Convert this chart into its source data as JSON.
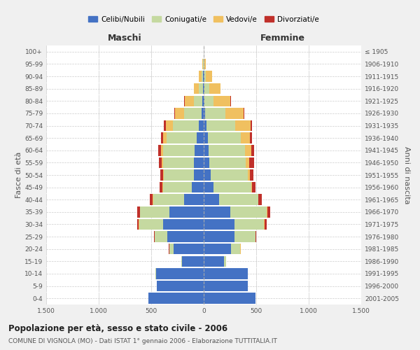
{
  "age_groups": [
    "0-4",
    "5-9",
    "10-14",
    "15-19",
    "20-24",
    "25-29",
    "30-34",
    "35-39",
    "40-44",
    "45-49",
    "50-54",
    "55-59",
    "60-64",
    "65-69",
    "70-74",
    "75-79",
    "80-84",
    "85-89",
    "90-94",
    "95-99",
    "100+"
  ],
  "birth_years": [
    "2001-2005",
    "1996-2000",
    "1991-1995",
    "1986-1990",
    "1981-1985",
    "1976-1980",
    "1971-1975",
    "1966-1970",
    "1961-1965",
    "1956-1960",
    "1951-1955",
    "1946-1950",
    "1941-1945",
    "1936-1940",
    "1931-1935",
    "1926-1930",
    "1921-1925",
    "1916-1920",
    "1911-1915",
    "1906-1910",
    "≤ 1905"
  ],
  "males": {
    "celibi": [
      530,
      445,
      455,
      205,
      290,
      345,
      390,
      330,
      185,
      115,
      95,
      95,
      90,
      70,
      50,
      20,
      12,
      8,
      4,
      2,
      0
    ],
    "coniugati": [
      0,
      0,
      2,
      8,
      35,
      120,
      225,
      275,
      295,
      275,
      285,
      290,
      300,
      285,
      245,
      170,
      80,
      40,
      18,
      4,
      0
    ],
    "vedovi": [
      0,
      0,
      0,
      0,
      4,
      4,
      2,
      2,
      4,
      5,
      8,
      12,
      18,
      32,
      68,
      85,
      88,
      45,
      28,
      5,
      2
    ],
    "divorziati": [
      0,
      0,
      0,
      0,
      4,
      4,
      18,
      28,
      28,
      22,
      28,
      32,
      28,
      18,
      14,
      4,
      4,
      2,
      0,
      0,
      0
    ]
  },
  "females": {
    "nubili": [
      490,
      420,
      420,
      195,
      260,
      295,
      290,
      255,
      148,
      92,
      68,
      55,
      48,
      40,
      25,
      15,
      8,
      8,
      4,
      2,
      0
    ],
    "coniugate": [
      0,
      0,
      2,
      18,
      88,
      195,
      285,
      345,
      370,
      358,
      355,
      345,
      348,
      310,
      275,
      190,
      82,
      48,
      18,
      4,
      0
    ],
    "vedove": [
      0,
      0,
      0,
      0,
      4,
      4,
      4,
      4,
      4,
      8,
      18,
      35,
      55,
      90,
      148,
      175,
      165,
      105,
      55,
      12,
      2
    ],
    "divorziate": [
      0,
      0,
      0,
      0,
      4,
      4,
      18,
      32,
      32,
      32,
      35,
      45,
      28,
      18,
      14,
      4,
      4,
      2,
      0,
      0,
      0
    ]
  },
  "colors": {
    "celibi_nubili": "#4472c4",
    "coniugati_e": "#c5d9a0",
    "vedovi_e": "#f0c060",
    "divorziati_e": "#c0302a"
  },
  "title": "Popolazione per età, sesso e stato civile - 2006",
  "subtitle": "COMUNE DI VIGNOLA (MO) - Dati ISTAT 1° gennaio 2006 - Elaborazione TUTTITALIA.IT",
  "xlabel_left": "Maschi",
  "xlabel_right": "Femmine",
  "ylabel_left": "Fasce di età",
  "ylabel_right": "Anni di nascita",
  "xlim": 1500,
  "xticklabels": [
    "1.500",
    "1.000",
    "500",
    "0",
    "500",
    "1.000",
    "1.500"
  ],
  "legend_labels": [
    "Celibi/Nubili",
    "Coniugati/e",
    "Vedovi/e",
    "Divorziati/e"
  ],
  "bg_color": "#f0f0f0",
  "plot_bg": "#ffffff",
  "grid_color": "#cccccc"
}
